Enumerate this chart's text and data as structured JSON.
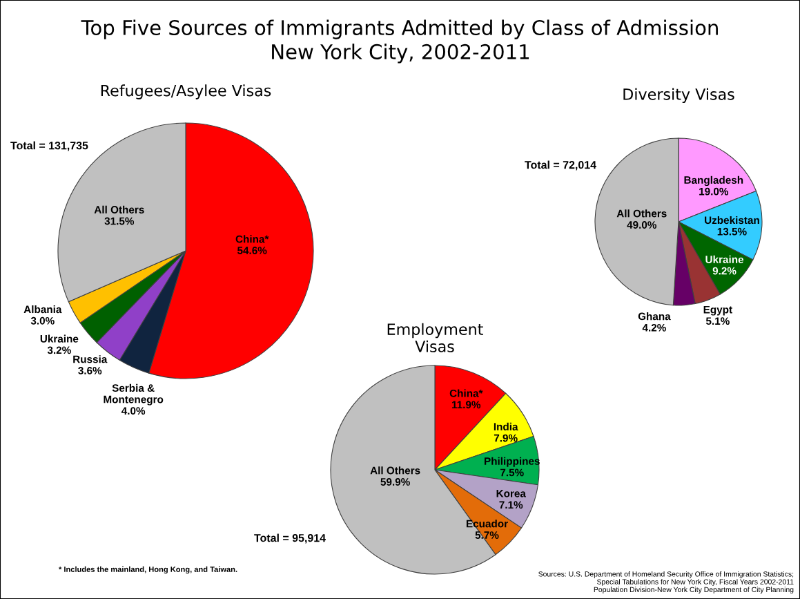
{
  "chart_data": [
    {
      "type": "pie",
      "title": "Refugees/Asylee Visas",
      "categories": [
        "China*",
        "Serbia &\nMontenegro",
        "Russia",
        "Ukraine",
        "Albania",
        "All Others"
      ],
      "values": [
        54.6,
        4.0,
        3.6,
        3.2,
        3.0,
        31.5
      ],
      "value_labels": [
        "54.6%",
        "4.0%",
        "3.6%",
        "3.2%",
        "3.0%",
        "31.5%"
      ],
      "colors": [
        "#ff0000",
        "#10243f",
        "#9040c8",
        "#006000",
        "#ffc000",
        "#c0c0c0"
      ],
      "annotations": [
        "Top Five Sources of Immigrants Admitted by Class of Admission\nNew York City, 2002-2011",
        "Total = 131,735"
      ]
    },
    {
      "type": "pie",
      "title": "Diversity Visas",
      "categories": [
        "Bangladesh",
        "Uzbekistan",
        "Ukraine",
        "Egypt",
        "Ghana",
        "All Others"
      ],
      "values": [
        19.0,
        13.5,
        9.2,
        5.1,
        4.2,
        49.0
      ],
      "value_labels": [
        "19.0%",
        "13.5%",
        "9.2%",
        "5.1%",
        "4.2%",
        "49.0%"
      ],
      "colors": [
        "#ff99ff",
        "#33ccff",
        "#006600",
        "#993333",
        "#660066",
        "#c0c0c0"
      ],
      "annotations": [
        "Total = 72,014"
      ]
    },
    {
      "type": "pie",
      "title": "Employment\nVisas",
      "categories": [
        "China*",
        "India",
        "Philippines",
        "Korea",
        "Ecuador",
        "All Others"
      ],
      "values": [
        11.9,
        7.9,
        7.5,
        7.1,
        5.7,
        59.9
      ],
      "value_labels": [
        "11.9%",
        "7.9%",
        "7.5%",
        "7.1%",
        "5.7%",
        "59.9%"
      ],
      "colors": [
        "#ff0000",
        "#ffff00",
        "#00b050",
        "#b3a2c7",
        "#e36c09",
        "#c0c0c0"
      ],
      "annotations": [
        "Total = 95,914",
        "* Includes the mainland, Hong Kong, and Taiwan.",
        "Sources: U.S. Department of Homeland Security Office of Immigration Statistics;\nSpecial Tabulations for New York City, Fiscal Years 2002-2011\nPopulation Division-New York City Department of City Planning"
      ]
    }
  ]
}
